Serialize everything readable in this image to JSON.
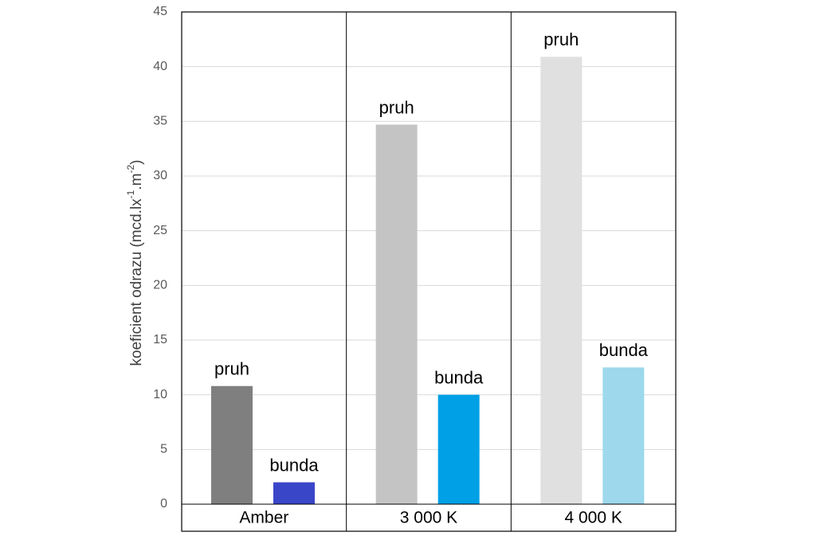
{
  "chart_data": {
    "type": "bar",
    "y_label": {
      "text": "koeficient odrazu (mcd.lx",
      "sup1": "-1",
      "mid": ".m",
      "sup2": "-2",
      "end": ")"
    },
    "categories": [
      "Amber",
      "3 000 K",
      "4 000 K"
    ],
    "series": [
      {
        "name": "pruh",
        "colors": [
          "#7f7f7f",
          "#c4c4c4",
          "#e0e0e0"
        ],
        "values": [
          10.8,
          34.7,
          40.9
        ]
      },
      {
        "name": "bunda",
        "colors": [
          "#3a46c8",
          "#00a0e6",
          "#9dd8ec"
        ],
        "values": [
          2.0,
          10.0,
          12.5
        ]
      }
    ],
    "ylim": [
      0,
      45
    ],
    "yticks": [
      0,
      5,
      10,
      15,
      20,
      25,
      30,
      35,
      40,
      45
    ],
    "grid": true
  }
}
